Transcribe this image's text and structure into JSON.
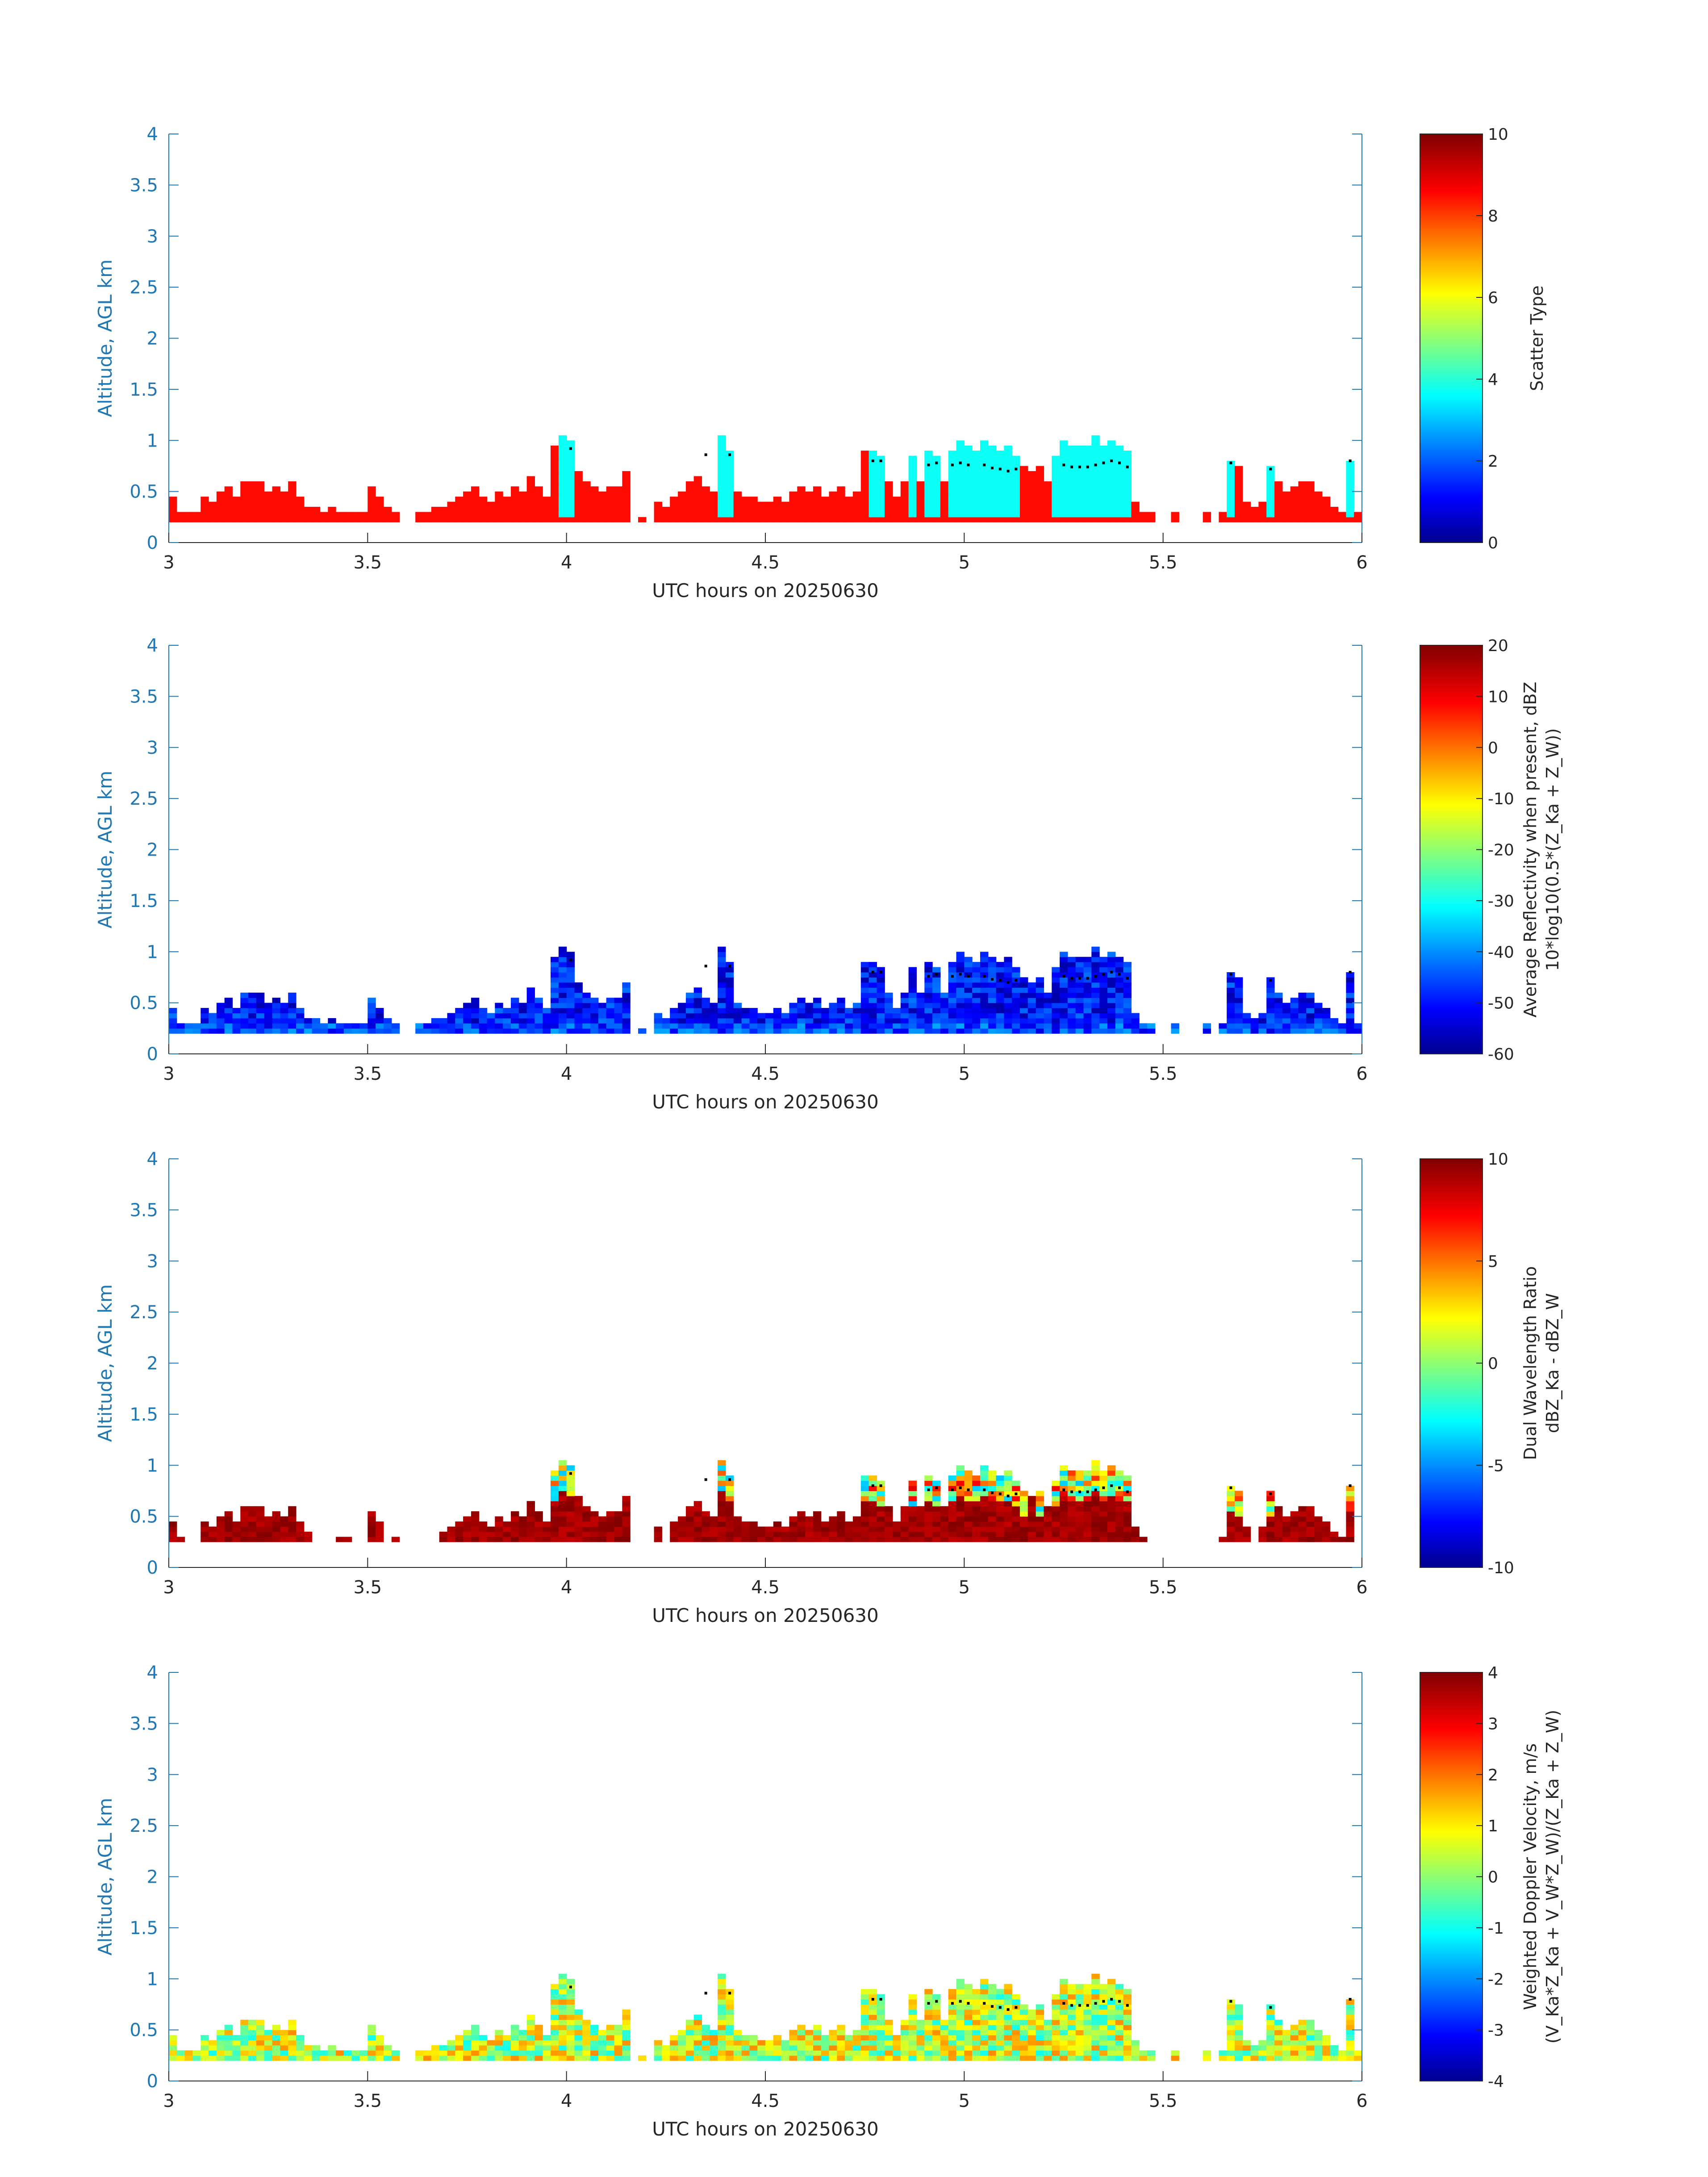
{
  "colors": {
    "axis": "#1f77b4",
    "text": "#262626",
    "marker": "#000000"
  },
  "chart_data": [
    {
      "type": "heatmap",
      "panel": 1,
      "ylabel": "Altitude, AGL km",
      "xlabel": "UTC hours on 20250630",
      "xlim": [
        3,
        6
      ],
      "ylim": [
        0,
        4
      ],
      "xticks": [
        "3",
        "3.5",
        "4",
        "4.5",
        "5",
        "5.5",
        "6"
      ],
      "yticks": [
        "0",
        "0.5",
        "1",
        "1.5",
        "2",
        "2.5",
        "3",
        "3.5",
        "4"
      ],
      "colorbar": {
        "label": "Scatter Type",
        "label2": "",
        "min": 0,
        "max": 10,
        "ticks": [
          "0",
          "2",
          "4",
          "6",
          "8",
          "10"
        ]
      },
      "colormap": "jet",
      "cell_value_note": "mostly 8.5 (orange) near surface; 3.7 (cyan) in deeper columns",
      "x_step": 0.02,
      "bottom_km": 0.2,
      "dominant_value": 8.5,
      "secondary_value": 3.7,
      "columns": [
        {
          "x": 3.0,
          "top": 0.45,
          "type": "A"
        },
        {
          "x": 3.02,
          "top": 0.3
        },
        {
          "x": 3.04,
          "top": 0.3
        },
        {
          "x": 3.06,
          "top": 0.3
        },
        {
          "x": 3.08,
          "top": 0.45
        },
        {
          "x": 3.1,
          "top": 0.4
        },
        {
          "x": 3.12,
          "top": 0.5
        },
        {
          "x": 3.14,
          "top": 0.55
        },
        {
          "x": 3.16,
          "top": 0.45
        },
        {
          "x": 3.18,
          "top": 0.6
        },
        {
          "x": 3.2,
          "top": 0.6
        },
        {
          "x": 3.22,
          "top": 0.6
        },
        {
          "x": 3.24,
          "top": 0.5
        },
        {
          "x": 3.26,
          "top": 0.55
        },
        {
          "x": 3.28,
          "top": 0.5
        },
        {
          "x": 3.3,
          "top": 0.6
        },
        {
          "x": 3.32,
          "top": 0.45
        },
        {
          "x": 3.34,
          "top": 0.35
        },
        {
          "x": 3.36,
          "top": 0.35
        },
        {
          "x": 3.38,
          "top": 0.3
        },
        {
          "x": 3.4,
          "top": 0.35
        },
        {
          "x": 3.42,
          "top": 0.3
        },
        {
          "x": 3.44,
          "top": 0.3
        },
        {
          "x": 3.46,
          "top": 0.3
        },
        {
          "x": 3.48,
          "top": 0.3
        },
        {
          "x": 3.5,
          "top": 0.55
        },
        {
          "x": 3.52,
          "top": 0.45
        },
        {
          "x": 3.54,
          "top": 0.35
        },
        {
          "x": 3.56,
          "top": 0.3
        },
        {
          "x": 3.62,
          "top": 0.3
        },
        {
          "x": 3.64,
          "top": 0.3
        },
        {
          "x": 3.66,
          "top": 0.35
        },
        {
          "x": 3.68,
          "top": 0.35
        },
        {
          "x": 3.7,
          "top": 0.4
        },
        {
          "x": 3.72,
          "top": 0.45
        },
        {
          "x": 3.74,
          "top": 0.5
        },
        {
          "x": 3.76,
          "top": 0.55
        },
        {
          "x": 3.78,
          "top": 0.45
        },
        {
          "x": 3.8,
          "top": 0.4
        },
        {
          "x": 3.82,
          "top": 0.5
        },
        {
          "x": 3.84,
          "top": 0.45
        },
        {
          "x": 3.86,
          "top": 0.55
        },
        {
          "x": 3.88,
          "top": 0.5
        },
        {
          "x": 3.9,
          "top": 0.65
        },
        {
          "x": 3.92,
          "top": 0.55
        },
        {
          "x": 3.94,
          "top": 0.45
        },
        {
          "x": 3.96,
          "top": 0.95
        },
        {
          "x": 3.98,
          "top": 1.05,
          "type": "B"
        },
        {
          "x": 4.0,
          "top": 1.0,
          "type": "B"
        },
        {
          "x": 4.02,
          "top": 0.7
        },
        {
          "x": 4.04,
          "top": 0.6
        },
        {
          "x": 4.06,
          "top": 0.55
        },
        {
          "x": 4.08,
          "top": 0.5
        },
        {
          "x": 4.1,
          "top": 0.55
        },
        {
          "x": 4.12,
          "top": 0.55
        },
        {
          "x": 4.14,
          "top": 0.7
        },
        {
          "x": 4.18,
          "top": 0.25
        },
        {
          "x": 4.22,
          "top": 0.4
        },
        {
          "x": 4.24,
          "top": 0.35
        },
        {
          "x": 4.26,
          "top": 0.45
        },
        {
          "x": 4.28,
          "top": 0.5
        },
        {
          "x": 4.3,
          "top": 0.6
        },
        {
          "x": 4.32,
          "top": 0.65
        },
        {
          "x": 4.34,
          "top": 0.55
        },
        {
          "x": 4.36,
          "top": 0.5
        },
        {
          "x": 4.38,
          "top": 1.05,
          "type": "B"
        },
        {
          "x": 4.4,
          "top": 0.9,
          "type": "B"
        },
        {
          "x": 4.42,
          "top": 0.5
        },
        {
          "x": 4.44,
          "top": 0.45
        },
        {
          "x": 4.46,
          "top": 0.45
        },
        {
          "x": 4.48,
          "top": 0.4
        },
        {
          "x": 4.5,
          "top": 0.4
        },
        {
          "x": 4.52,
          "top": 0.45
        },
        {
          "x": 4.54,
          "top": 0.4
        },
        {
          "x": 4.56,
          "top": 0.5
        },
        {
          "x": 4.58,
          "top": 0.55
        },
        {
          "x": 4.6,
          "top": 0.5
        },
        {
          "x": 4.62,
          "top": 0.55
        },
        {
          "x": 4.64,
          "top": 0.45
        },
        {
          "x": 4.66,
          "top": 0.5
        },
        {
          "x": 4.68,
          "top": 0.55
        },
        {
          "x": 4.7,
          "top": 0.45
        },
        {
          "x": 4.72,
          "top": 0.5
        },
        {
          "x": 4.74,
          "top": 0.9
        },
        {
          "x": 4.76,
          "top": 0.9,
          "type": "B"
        },
        {
          "x": 4.78,
          "top": 0.85,
          "type": "B"
        },
        {
          "x": 4.8,
          "top": 0.6
        },
        {
          "x": 4.82,
          "top": 0.45
        },
        {
          "x": 4.84,
          "top": 0.6
        },
        {
          "x": 4.86,
          "top": 0.85,
          "type": "B"
        },
        {
          "x": 4.88,
          "top": 0.6
        },
        {
          "x": 4.9,
          "top": 0.9,
          "type": "B"
        },
        {
          "x": 4.92,
          "top": 0.85,
          "type": "B"
        },
        {
          "x": 4.94,
          "top": 0.6
        },
        {
          "x": 4.96,
          "top": 0.9,
          "type": "B"
        },
        {
          "x": 4.98,
          "top": 1.0,
          "type": "B"
        },
        {
          "x": 5.0,
          "top": 0.95,
          "type": "B"
        },
        {
          "x": 5.02,
          "top": 0.9,
          "type": "B"
        },
        {
          "x": 5.04,
          "top": 1.0,
          "type": "B"
        },
        {
          "x": 5.06,
          "top": 0.95,
          "type": "B"
        },
        {
          "x": 5.08,
          "top": 0.9,
          "type": "B"
        },
        {
          "x": 5.1,
          "top": 0.95,
          "type": "B"
        },
        {
          "x": 5.12,
          "top": 0.85,
          "type": "B"
        },
        {
          "x": 5.14,
          "top": 0.75
        },
        {
          "x": 5.16,
          "top": 0.7
        },
        {
          "x": 5.18,
          "top": 0.75
        },
        {
          "x": 5.2,
          "top": 0.6
        },
        {
          "x": 5.22,
          "top": 0.85,
          "type": "B"
        },
        {
          "x": 5.24,
          "top": 1.0,
          "type": "B"
        },
        {
          "x": 5.26,
          "top": 0.95,
          "type": "B"
        },
        {
          "x": 5.28,
          "top": 0.95,
          "type": "B"
        },
        {
          "x": 5.3,
          "top": 0.95,
          "type": "B"
        },
        {
          "x": 5.32,
          "top": 1.05,
          "type": "B"
        },
        {
          "x": 5.34,
          "top": 0.95,
          "type": "B"
        },
        {
          "x": 5.36,
          "top": 1.0,
          "type": "B"
        },
        {
          "x": 5.38,
          "top": 0.95,
          "type": "B"
        },
        {
          "x": 5.4,
          "top": 0.9,
          "type": "B"
        },
        {
          "x": 5.42,
          "top": 0.4
        },
        {
          "x": 5.44,
          "top": 0.3
        },
        {
          "x": 5.46,
          "top": 0.3
        },
        {
          "x": 5.52,
          "top": 0.3
        },
        {
          "x": 5.6,
          "top": 0.3
        },
        {
          "x": 5.64,
          "top": 0.3
        },
        {
          "x": 5.66,
          "top": 0.8,
          "type": "B"
        },
        {
          "x": 5.68,
          "top": 0.75
        },
        {
          "x": 5.7,
          "top": 0.4
        },
        {
          "x": 5.72,
          "top": 0.35
        },
        {
          "x": 5.74,
          "top": 0.4
        },
        {
          "x": 5.76,
          "top": 0.75,
          "type": "B"
        },
        {
          "x": 5.78,
          "top": 0.6
        },
        {
          "x": 5.8,
          "top": 0.5
        },
        {
          "x": 5.82,
          "top": 0.55
        },
        {
          "x": 5.84,
          "top": 0.6
        },
        {
          "x": 5.86,
          "top": 0.6
        },
        {
          "x": 5.88,
          "top": 0.5
        },
        {
          "x": 5.9,
          "top": 0.45
        },
        {
          "x": 5.92,
          "top": 0.35
        },
        {
          "x": 5.94,
          "top": 0.3
        },
        {
          "x": 5.96,
          "top": 0.8,
          "type": "B"
        },
        {
          "x": 5.98,
          "top": 0.3
        }
      ],
      "markers": [
        [
          4.0,
          0.92
        ],
        [
          4.34,
          0.86
        ],
        [
          4.4,
          0.86
        ],
        [
          4.76,
          0.8
        ],
        [
          4.78,
          0.8
        ],
        [
          4.9,
          0.76
        ],
        [
          4.92,
          0.78
        ],
        [
          4.96,
          0.76
        ],
        [
          4.98,
          0.78
        ],
        [
          5.0,
          0.76
        ],
        [
          5.04,
          0.76
        ],
        [
          5.06,
          0.73
        ],
        [
          5.08,
          0.72
        ],
        [
          5.1,
          0.7
        ],
        [
          5.12,
          0.72
        ],
        [
          5.24,
          0.76
        ],
        [
          5.26,
          0.74
        ],
        [
          5.28,
          0.74
        ],
        [
          5.3,
          0.74
        ],
        [
          5.32,
          0.76
        ],
        [
          5.34,
          0.78
        ],
        [
          5.36,
          0.8
        ],
        [
          5.38,
          0.78
        ],
        [
          5.4,
          0.74
        ],
        [
          5.66,
          0.78
        ],
        [
          5.76,
          0.72
        ],
        [
          5.96,
          0.8
        ]
      ]
    },
    {
      "type": "heatmap",
      "panel": 2,
      "ylabel": "Altitude, AGL km",
      "xlabel": "UTC hours on 20250630",
      "xlim": [
        3,
        6
      ],
      "ylim": [
        0,
        4
      ],
      "xticks": [
        "3",
        "3.5",
        "4",
        "4.5",
        "5",
        "5.5",
        "6"
      ],
      "yticks": [
        "0",
        "0.5",
        "1",
        "1.5",
        "2",
        "2.5",
        "3",
        "3.5",
        "4"
      ],
      "colorbar": {
        "label": "Average Reflectivity when present, dBZ",
        "label2": "10*log10(0.5*(Z_Ka + Z_W))",
        "min": -60,
        "max": 20,
        "ticks": [
          "-60",
          "-50",
          "-40",
          "-30",
          "-20",
          "-10",
          "0",
          "10",
          "20"
        ]
      },
      "colormap": "jet",
      "value_range_shown": [
        -58,
        -38
      ]
    },
    {
      "type": "heatmap",
      "panel": 3,
      "ylabel": "Altitude, AGL km",
      "xlabel": "UTC hours on 20250630",
      "xlim": [
        3,
        6
      ],
      "ylim": [
        0,
        4
      ],
      "xticks": [
        "3",
        "3.5",
        "4",
        "4.5",
        "5",
        "5.5",
        "6"
      ],
      "yticks": [
        "0",
        "0.5",
        "1",
        "1.5",
        "2",
        "2.5",
        "3",
        "3.5",
        "4"
      ],
      "colorbar": {
        "label": "Dual Wavelength Ratio",
        "label2": "dBZ_Ka - dBZ_W",
        "min": -10,
        "max": 10,
        "ticks": [
          "-10",
          "-5",
          "0",
          "5",
          "10"
        ]
      },
      "colormap": "jet",
      "value_range_shown": [
        -6,
        10
      ]
    },
    {
      "type": "heatmap",
      "panel": 4,
      "ylabel": "Altitude, AGL km",
      "xlabel": "UTC hours on 20250630",
      "xlim": [
        3,
        6
      ],
      "ylim": [
        0,
        4
      ],
      "xticks": [
        "3",
        "3.5",
        "4",
        "4.5",
        "5",
        "5.5",
        "6"
      ],
      "yticks": [
        "0",
        "0.5",
        "1",
        "1.5",
        "2",
        "2.5",
        "3",
        "3.5",
        "4"
      ],
      "colorbar": {
        "label": "Weighted Doppler Velocity, m/s",
        "label2": "(V_Ka*Z_Ka + V_W*Z_W)/(Z_Ka + Z_W)",
        "min": -4,
        "max": 4,
        "ticks": [
          "-4",
          "-3",
          "-2",
          "-1",
          "0",
          "1",
          "2",
          "3",
          "4"
        ]
      },
      "colormap": "jet",
      "value_range_shown": [
        -1.5,
        2.5
      ]
    }
  ]
}
